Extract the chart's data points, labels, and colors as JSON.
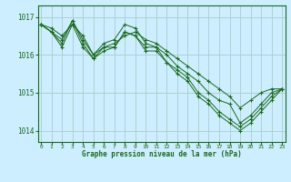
{
  "title": "Graphe pression niveau de la mer (hPa)",
  "x_ticks": [
    0,
    1,
    2,
    3,
    4,
    5,
    6,
    7,
    8,
    9,
    10,
    11,
    12,
    13,
    14,
    15,
    16,
    17,
    18,
    19,
    20,
    21,
    22,
    23
  ],
  "ylim": [
    1013.7,
    1017.3
  ],
  "xlim": [
    -0.3,
    23.3
  ],
  "yticks": [
    1014,
    1015,
    1016,
    1017
  ],
  "bg_color": "#cceeff",
  "grid_color": "#aacccc",
  "line_color": "#1a6a1a",
  "marker": "+",
  "series": [
    [
      1016.8,
      1016.7,
      1016.5,
      1016.8,
      1016.5,
      1016.0,
      1016.2,
      1016.3,
      1016.5,
      1016.6,
      1016.4,
      1016.3,
      1016.1,
      1015.9,
      1015.7,
      1015.5,
      1015.3,
      1015.1,
      1014.9,
      1014.6,
      1014.8,
      1015.0,
      1015.1,
      1015.1
    ],
    [
      1016.8,
      1016.6,
      1016.4,
      1016.9,
      1016.4,
      1016.0,
      1016.3,
      1016.4,
      1016.8,
      1016.7,
      1016.3,
      1016.2,
      1016.0,
      1015.7,
      1015.5,
      1015.3,
      1015.0,
      1014.8,
      1014.7,
      1014.2,
      1014.4,
      1014.7,
      1015.0,
      1015.1
    ],
    [
      1016.8,
      1016.6,
      1016.3,
      1016.9,
      1016.3,
      1015.9,
      1016.2,
      1016.2,
      1016.6,
      1016.5,
      1016.2,
      1016.2,
      1015.8,
      1015.6,
      1015.4,
      1015.0,
      1014.8,
      1014.5,
      1014.3,
      1014.1,
      1014.3,
      1014.6,
      1014.9,
      1015.1
    ],
    [
      1016.8,
      1016.6,
      1016.2,
      1016.8,
      1016.2,
      1015.9,
      1016.1,
      1016.2,
      1016.6,
      1016.5,
      1016.1,
      1016.1,
      1015.8,
      1015.5,
      1015.3,
      1014.9,
      1014.7,
      1014.4,
      1014.2,
      1014.0,
      1014.2,
      1014.5,
      1014.8,
      1015.1
    ]
  ]
}
